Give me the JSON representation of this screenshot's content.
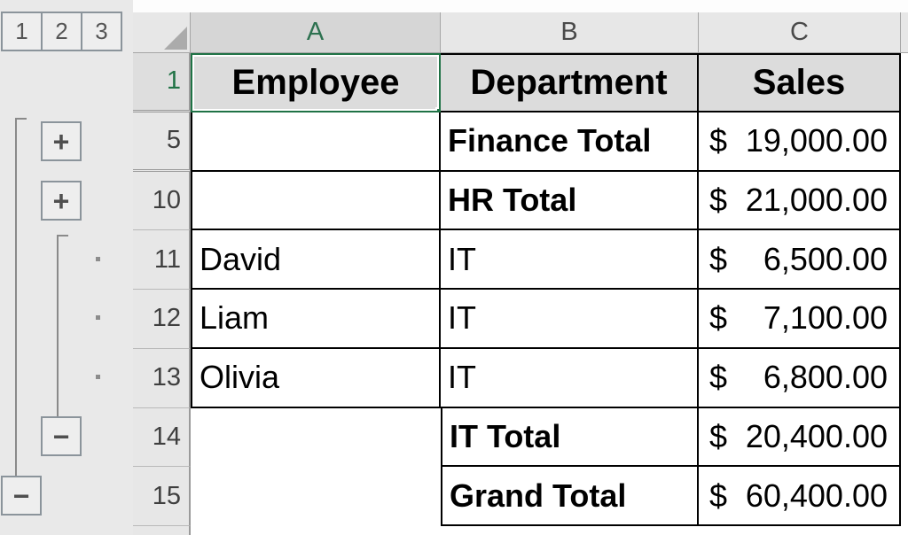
{
  "app": {
    "description": "Excel worksheet with grouped/outlined rows showing subtotaled sales by department",
    "accent_green": "#1f7245"
  },
  "outline": {
    "level_buttons": {
      "l1": "1",
      "l2": "2",
      "l3": "3"
    },
    "expand_row5_glyph": "+",
    "expand_row10_glyph": "+",
    "collapse_row14_glyph": "−",
    "collapse_row15_glyph": "−"
  },
  "grid": {
    "selected_cell": "A1",
    "column_letters": {
      "a": "A",
      "b": "B",
      "c": "C"
    },
    "row_numbers": {
      "r1": "1",
      "r5": "5",
      "r10": "10",
      "r11": "11",
      "r12": "12",
      "r13": "13",
      "r14": "14",
      "r15": "15"
    }
  },
  "table": {
    "header": {
      "employee": "Employee",
      "department": "Department",
      "sales": "Sales"
    },
    "rows": [
      {
        "n": "5",
        "a": "",
        "b": "Finance Total",
        "sym": "$",
        "val": "19,000.00"
      },
      {
        "n": "10",
        "a": "",
        "b": "HR Total",
        "sym": "$",
        "val": "21,000.00"
      },
      {
        "n": "11",
        "a": "David",
        "b": "IT",
        "sym": "$",
        "val": "6,500.00"
      },
      {
        "n": "12",
        "a": "Liam",
        "b": "IT",
        "sym": "$",
        "val": "7,100.00"
      },
      {
        "n": "13",
        "a": "Olivia",
        "b": "IT",
        "sym": "$",
        "val": "6,800.00"
      },
      {
        "n": "14",
        "a": "",
        "b": "IT Total",
        "sym": "$",
        "val": "20,400.00"
      },
      {
        "n": "15",
        "a": "",
        "b": "Grand Total",
        "sym": "$",
        "val": "60,400.00"
      }
    ]
  },
  "colors": {
    "selection_green": "#1f7245",
    "table_border": "#000000",
    "header_fill": "#dcdcdc",
    "gutter_bg": "#e9e9e9",
    "header_strip_bg": "#e7e7e7",
    "selected_header_fill": "#d6d6d6"
  }
}
